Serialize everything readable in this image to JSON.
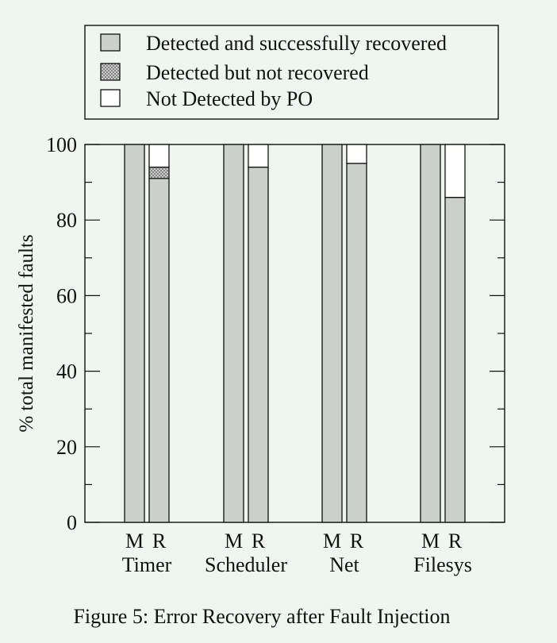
{
  "figure_caption": "Figure 5: Error Recovery after Fault Injection",
  "colors": {
    "background": "#eff5ef",
    "recovered_fill": "#cbd0cb",
    "not_recovered_fill": "#a9aaa9",
    "not_detected_fill": "#ffffff",
    "stroke": "#111111"
  },
  "chart_data": {
    "type": "bar",
    "stacked": true,
    "ylabel": "% total manifested faults",
    "xlabel": "",
    "ylim": [
      0,
      100
    ],
    "yticks": [
      0,
      20,
      40,
      60,
      80,
      100
    ],
    "grid": false,
    "legend_position": "top",
    "groups": [
      "Timer",
      "Scheduler",
      "Net",
      "Filesys"
    ],
    "bar_labels": [
      "M",
      "R"
    ],
    "categories": [
      "Timer M",
      "Timer R",
      "Scheduler M",
      "Scheduler R",
      "Net M",
      "Net R",
      "Filesys M",
      "Filesys R"
    ],
    "series": [
      {
        "name": "Detected and successfully recovered",
        "pattern": "solid-gray",
        "values": [
          100,
          91,
          100,
          94,
          100,
          95,
          100,
          86
        ]
      },
      {
        "name": "Detected but not recovered",
        "pattern": "dotted-gray",
        "values": [
          0,
          3,
          0,
          0,
          0,
          0,
          0,
          0
        ]
      },
      {
        "name": "Not Detected by PO",
        "pattern": "white",
        "values": [
          0,
          6,
          0,
          6,
          0,
          5,
          0,
          14
        ]
      }
    ]
  }
}
